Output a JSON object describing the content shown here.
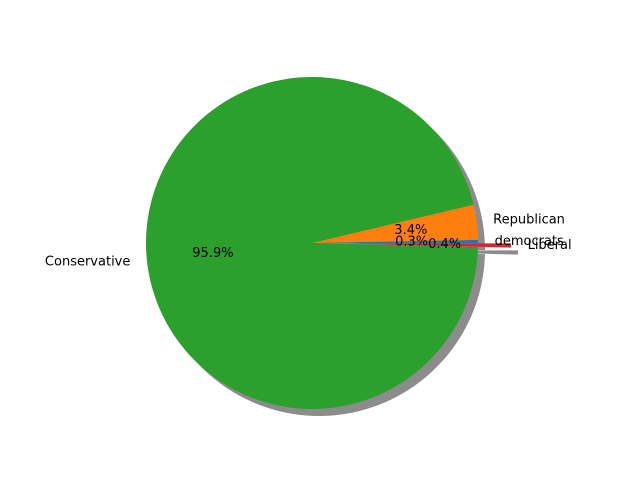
{
  "chart_data": {
    "type": "pie",
    "slices": [
      {
        "label": "democrats",
        "value": 0.3,
        "pct_text": "0.3%",
        "color": "#1f77b4",
        "exploded": false
      },
      {
        "label": "Republican",
        "value": 3.4,
        "pct_text": "3.4%",
        "color": "#ff7f0e",
        "exploded": false
      },
      {
        "label": "Conservative",
        "value": 95.9,
        "pct_text": "95.9%",
        "color": "#2ca02c",
        "exploded": false
      },
      {
        "label": "Liberal",
        "value": 0.4,
        "pct_text": "0.4%",
        "color": "#d62728",
        "exploded": true
      }
    ],
    "shadow": true,
    "start_angle": 0,
    "direction": "counterclockwise"
  }
}
